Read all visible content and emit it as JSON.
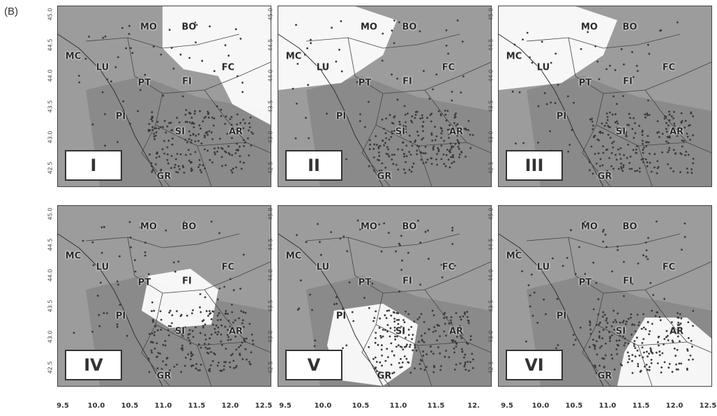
{
  "figure_label": "(B)",
  "panels": [
    {
      "id": "I",
      "white_zone": "north-east"
    },
    {
      "id": "II",
      "white_zone": "north-west"
    },
    {
      "id": "III",
      "white_zone": "north-west"
    },
    {
      "id": "IV",
      "white_zone": "centre-north"
    },
    {
      "id": "V",
      "white_zone": "centre-south"
    },
    {
      "id": "VI",
      "white_zone": "south-east"
    }
  ],
  "regions": [
    "MO",
    "BO",
    "MC",
    "LU",
    "PT",
    "FI",
    "FC",
    "PI",
    "SI",
    "AR",
    "GR"
  ],
  "y_ticks": [
    "45.0",
    "44.5",
    "44.0",
    "43.5",
    "43.0",
    "42.5"
  ],
  "x_ticks_left": [
    "9.5",
    "10.0",
    "10.5",
    "11.0",
    "11.5",
    "12.0",
    "12.5"
  ],
  "x_ticks_middle": [
    "9.5",
    "10.0",
    "10.5",
    "11.0",
    "11.5",
    "12."
  ],
  "x_ticks_right": [
    "9.5",
    "10.0",
    "10.5",
    "11.0",
    "11.5",
    "12.0",
    "12.5"
  ],
  "colors": {
    "background": "#9c9c9c",
    "land_dark": "#8a8a8a",
    "points": "#3a3a3a",
    "white_zone": "#ffffff"
  }
}
